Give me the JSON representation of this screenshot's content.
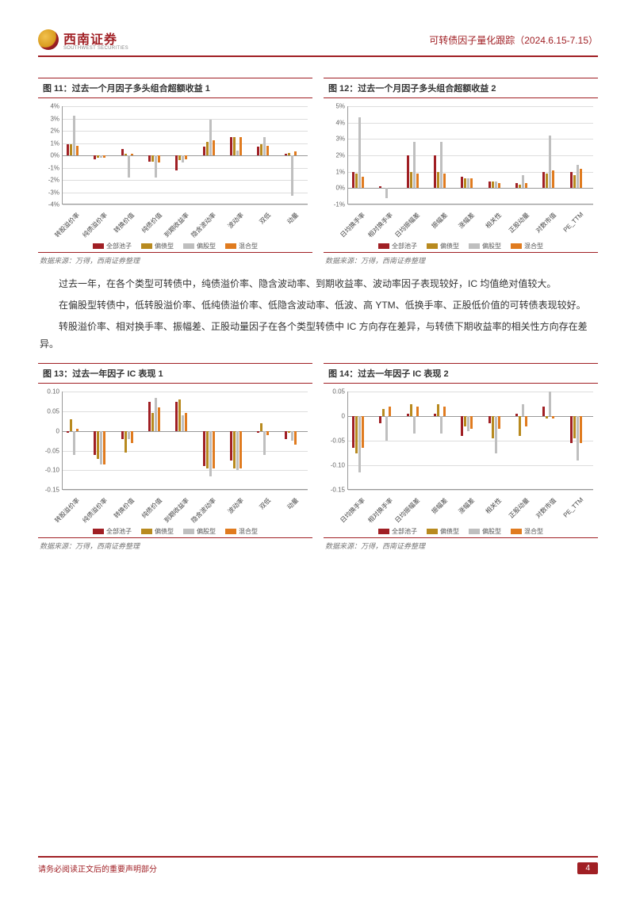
{
  "header": {
    "brand_cn": "西南证券",
    "brand_en": "SOUTHWEST SECURITIES",
    "right": "可转债因子量化跟踪（2024.6.15-7.15）"
  },
  "colors": {
    "accent": "#a01f24",
    "series": [
      "#a01f24",
      "#b88a1f",
      "#bfbfbf",
      "#e07b1f"
    ],
    "grid": "#dddddd",
    "axis": "#999999",
    "text": "#333333",
    "bg": "#ffffff"
  },
  "legend_labels": [
    "全部池子",
    "偏债型",
    "偏股型",
    "混合型"
  ],
  "source": "数据来源：万得，西南证券整理",
  "paragraphs": [
    "过去一年，在各个类型可转债中，纯债溢价率、隐含波动率、到期收益率、波动率因子表现较好，IC 均值绝对值较大。",
    "在偏股型转债中，低转股溢价率、低纯债溢价率、低隐含波动率、低波、高 YTM、低换手率、正股低价值的可转债表现较好。",
    "转股溢价率、相对换手率、振幅差、正股动量因子在各个类型转债中 IC 方向存在差异，与转债下期收益率的相关性方向存在差异。"
  ],
  "chart11": {
    "title": "图 11：过去一个月因子多头组合超额收益 1",
    "type": "bar",
    "categories": [
      "转股溢价率",
      "纯债溢价率",
      "转换价值",
      "纯债价值",
      "到期收益率",
      "隐含波动率",
      "波动率",
      "双低",
      "动量"
    ],
    "y_min": -4,
    "y_max": 4,
    "y_step": 1,
    "y_suffix": "%",
    "series": [
      [
        0.9,
        -0.3,
        0.5,
        -0.5,
        -1.2,
        0.7,
        1.5,
        0.7,
        0.1
      ],
      [
        0.9,
        -0.2,
        0.1,
        -0.5,
        -0.4,
        1.1,
        1.5,
        0.9,
        0.2
      ],
      [
        3.2,
        -0.2,
        -1.8,
        -1.8,
        -0.6,
        2.9,
        0.4,
        1.5,
        -3.3
      ],
      [
        0.8,
        -0.2,
        0.1,
        -0.6,
        -0.3,
        1.2,
        1.5,
        0.8,
        0.3
      ]
    ]
  },
  "chart12": {
    "title": "图 12：过去一个月因子多头组合超额收益 2",
    "type": "bar",
    "categories": [
      "日均换手率",
      "相对换手率",
      "日均振幅差",
      "振幅差",
      "涨幅差",
      "相关性",
      "正股动量",
      "对数市值",
      "PE_TTM"
    ],
    "y_min": -1,
    "y_max": 5,
    "y_step": 1,
    "y_suffix": "%",
    "series": [
      [
        1.0,
        0.1,
        2.0,
        2.0,
        0.7,
        0.4,
        0.3,
        1.0,
        1.0
      ],
      [
        0.9,
        0.0,
        1.0,
        1.0,
        0.6,
        0.4,
        0.2,
        0.9,
        0.8
      ],
      [
        4.3,
        -0.6,
        2.8,
        2.8,
        0.6,
        0.4,
        0.8,
        3.2,
        1.4
      ],
      [
        0.7,
        0.0,
        0.9,
        0.9,
        0.6,
        0.3,
        0.3,
        1.1,
        1.2
      ]
    ]
  },
  "chart13": {
    "title": "图 13：过去一年因子 IC 表现 1",
    "type": "bar",
    "categories": [
      "转股溢价率",
      "纯债溢价率",
      "转换价值",
      "纯债价值",
      "到期收益率",
      "隐含波动率",
      "波动率",
      "双低",
      "动量"
    ],
    "y_min": -0.15,
    "y_max": 0.1,
    "y_step": 0.05,
    "y_suffix": "",
    "series": [
      [
        -0.005,
        -0.06,
        -0.02,
        0.075,
        0.075,
        -0.09,
        -0.075,
        -0.005,
        -0.02
      ],
      [
        0.03,
        -0.07,
        -0.055,
        0.045,
        0.08,
        -0.095,
        -0.095,
        0.02,
        -0.005
      ],
      [
        -0.06,
        -0.085,
        -0.02,
        0.085,
        0.04,
        -0.115,
        -0.1,
        -0.06,
        -0.025
      ],
      [
        0.005,
        -0.085,
        -0.03,
        0.06,
        0.045,
        -0.095,
        -0.095,
        -0.01,
        -0.035
      ]
    ]
  },
  "chart14": {
    "title": "图 14：过去一年因子 IC 表现 2",
    "type": "bar",
    "categories": [
      "日均换手率",
      "相对换手率",
      "日均振幅差",
      "振幅差",
      "涨幅差",
      "相关性",
      "正股动量",
      "对数市值",
      "PE_TTM"
    ],
    "y_min": -0.15,
    "y_max": 0.05,
    "y_step": 0.05,
    "y_suffix": "",
    "series": [
      [
        -0.065,
        -0.015,
        0.005,
        0.005,
        -0.04,
        -0.015,
        0.005,
        0.02,
        -0.055
      ],
      [
        -0.075,
        0.015,
        0.025,
        0.025,
        -0.02,
        -0.045,
        -0.04,
        -0.005,
        -0.045
      ],
      [
        -0.115,
        -0.05,
        -0.035,
        -0.035,
        -0.03,
        -0.075,
        0.025,
        0.05,
        -0.09
      ],
      [
        -0.065,
        0.02,
        0.02,
        0.02,
        -0.025,
        -0.025,
        -0.02,
        -0.005,
        -0.055
      ]
    ]
  },
  "footer": {
    "text": "请务必阅读正文后的重要声明部分",
    "page": "4"
  }
}
